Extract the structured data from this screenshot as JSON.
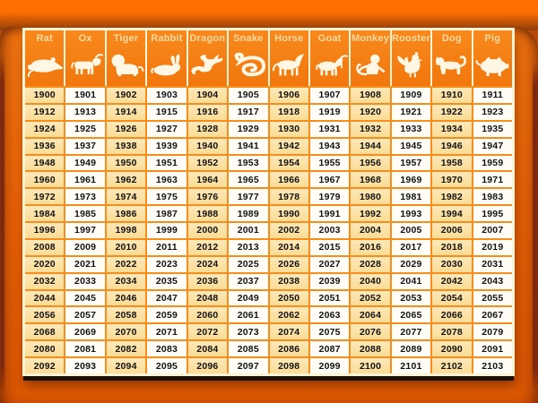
{
  "palette": {
    "bg_top": "#ff6f04",
    "bg_dark_edge": "#8f3c0a",
    "photo_top": "#f97a10",
    "photo_mid": "#ef6507",
    "photo_bottom": "#e15a04",
    "edge_maroon": "#7c2810",
    "header_orange": "#f1770d",
    "header_orange_light": "#f8891c",
    "header_text": "#fcd9a0",
    "icon_cream": "#fff6e4",
    "panel_border_cream": "#fff3d6",
    "panel_border_dark": "#1a0f06",
    "grid_line_orange": "#f68d1d",
    "cell_gold": "#fadc95",
    "cell_gold_light": "#fde8b8",
    "cell_white": "#fffdf6",
    "year_text": "#121212"
  },
  "chart_data": {
    "type": "table",
    "title": "Chinese zodiac years by animal sign",
    "columns": [
      {
        "label": "Rat",
        "icon": "rat-icon",
        "years": [
          1900,
          1912,
          1924,
          1936,
          1948,
          1960,
          1972,
          1984,
          1996,
          2008,
          2020,
          2032,
          2044,
          2056,
          2068,
          2080,
          2092
        ]
      },
      {
        "label": "Ox",
        "icon": "ox-icon",
        "years": [
          1901,
          1913,
          1925,
          1937,
          1949,
          1961,
          1973,
          1985,
          1997,
          2009,
          2021,
          2033,
          2045,
          2057,
          2069,
          2081,
          2093
        ]
      },
      {
        "label": "Tiger",
        "icon": "tiger-icon",
        "years": [
          1902,
          1914,
          1926,
          1938,
          1950,
          1962,
          1974,
          1986,
          1998,
          2010,
          2022,
          2034,
          2046,
          2058,
          2070,
          2082,
          2094
        ]
      },
      {
        "label": "Rabbit",
        "icon": "rabbit-icon",
        "years": [
          1903,
          1915,
          1927,
          1939,
          1951,
          1963,
          1975,
          1987,
          1999,
          2011,
          2023,
          2035,
          2047,
          2059,
          2071,
          2083,
          2095
        ]
      },
      {
        "label": "Dragon",
        "icon": "dragon-icon",
        "years": [
          1904,
          1916,
          1928,
          1940,
          1952,
          1964,
          1976,
          1988,
          2000,
          2012,
          2024,
          2036,
          2048,
          2060,
          2072,
          2084,
          2096
        ]
      },
      {
        "label": "Snake",
        "icon": "snake-icon",
        "years": [
          1905,
          1917,
          1929,
          1941,
          1953,
          1965,
          1977,
          1989,
          2001,
          2013,
          2025,
          2037,
          2049,
          2061,
          2073,
          2085,
          2097
        ]
      },
      {
        "label": "Horse",
        "icon": "horse-icon",
        "years": [
          1906,
          1918,
          1930,
          1942,
          1954,
          1966,
          1978,
          1990,
          2002,
          2014,
          2026,
          2038,
          2050,
          2062,
          2074,
          2086,
          2098
        ]
      },
      {
        "label": "Goat",
        "icon": "goat-icon",
        "years": [
          1907,
          1919,
          1931,
          1943,
          1955,
          1967,
          1979,
          1991,
          2003,
          2015,
          2027,
          2039,
          2051,
          2063,
          2075,
          2087,
          2099
        ]
      },
      {
        "label": "Monkey",
        "icon": "monkey-icon",
        "years": [
          1908,
          1920,
          1932,
          1944,
          1956,
          1968,
          1980,
          1992,
          2004,
          2016,
          2028,
          2040,
          2052,
          2064,
          2076,
          2088,
          2100
        ]
      },
      {
        "label": "Rooster",
        "icon": "rooster-icon",
        "years": [
          1909,
          1921,
          1933,
          1945,
          1957,
          1969,
          1981,
          1993,
          2005,
          2017,
          2029,
          2041,
          2053,
          2065,
          2077,
          2089,
          2101
        ]
      },
      {
        "label": "Dog",
        "icon": "dog-icon",
        "years": [
          1910,
          1922,
          1934,
          1946,
          1958,
          1970,
          1982,
          1994,
          2006,
          2018,
          2030,
          2042,
          2054,
          2066,
          2078,
          2090,
          2102
        ]
      },
      {
        "label": "Pig",
        "icon": "pig-icon",
        "years": [
          1911,
          1923,
          1935,
          1947,
          1959,
          1971,
          1983,
          1995,
          2007,
          2019,
          2031,
          2043,
          2055,
          2067,
          2079,
          2091,
          2103
        ]
      }
    ]
  }
}
